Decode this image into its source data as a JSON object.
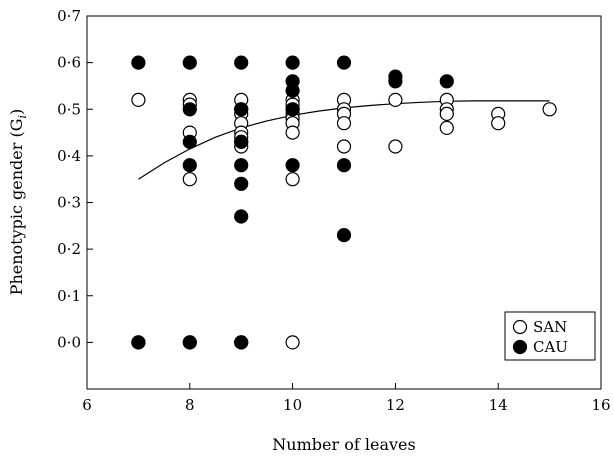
{
  "chart_data": {
    "type": "scatter",
    "title": "",
    "xlabel": "Number of leaves",
    "ylabel_main": "Phenotypic gender (G",
    "ylabel_sub": "i",
    "ylabel_end": ")",
    "xlim": [
      6,
      16
    ],
    "ylim": [
      -0.1,
      0.7
    ],
    "x_ticks": [
      6,
      8,
      10,
      12,
      14,
      16
    ],
    "x_tick_labels": [
      "6",
      "8",
      "10",
      "12",
      "14",
      "16"
    ],
    "y_ticks": [
      0.0,
      0.1,
      0.2,
      0.3,
      0.4,
      0.5,
      0.6,
      0.7
    ],
    "y_tick_labels": [
      "0·0",
      "0·1",
      "0·2",
      "0·3",
      "0·4",
      "0·5",
      "0·6",
      "0·7"
    ],
    "grid": false,
    "legend_position": "bottom-right",
    "series": [
      {
        "name": "SAN",
        "marker": "open-circle",
        "color": "#000000",
        "points": [
          [
            7,
            0.52
          ],
          [
            7,
            0.0
          ],
          [
            8,
            0.52
          ],
          [
            8,
            0.51
          ],
          [
            8,
            0.45
          ],
          [
            8,
            0.35
          ],
          [
            8,
            0.0
          ],
          [
            9,
            0.52
          ],
          [
            9,
            0.5
          ],
          [
            9,
            0.49
          ],
          [
            9,
            0.47
          ],
          [
            9,
            0.45
          ],
          [
            9,
            0.44
          ],
          [
            9,
            0.43
          ],
          [
            9,
            0.42
          ],
          [
            9,
            0.0
          ],
          [
            10,
            0.52
          ],
          [
            10,
            0.51
          ],
          [
            10,
            0.5
          ],
          [
            10,
            0.49
          ],
          [
            10,
            0.48
          ],
          [
            10,
            0.47
          ],
          [
            10,
            0.45
          ],
          [
            10,
            0.35
          ],
          [
            10,
            0.0
          ],
          [
            11,
            0.52
          ],
          [
            11,
            0.5
          ],
          [
            11,
            0.49
          ],
          [
            11,
            0.47
          ],
          [
            11,
            0.42
          ],
          [
            12,
            0.52
          ],
          [
            12,
            0.42
          ],
          [
            13,
            0.52
          ],
          [
            13,
            0.5
          ],
          [
            13,
            0.49
          ],
          [
            13,
            0.46
          ],
          [
            14,
            0.49
          ],
          [
            14,
            0.47
          ],
          [
            15,
            0.5
          ]
        ]
      },
      {
        "name": "CAU",
        "marker": "filled-circle",
        "color": "#000000",
        "points": [
          [
            7,
            0.6
          ],
          [
            7,
            0.0
          ],
          [
            8,
            0.6
          ],
          [
            8,
            0.5
          ],
          [
            8,
            0.43
          ],
          [
            8,
            0.38
          ],
          [
            8,
            0.0
          ],
          [
            9,
            0.6
          ],
          [
            9,
            0.5
          ],
          [
            9,
            0.43
          ],
          [
            9,
            0.38
          ],
          [
            9,
            0.34
          ],
          [
            9,
            0.27
          ],
          [
            9,
            0.0
          ],
          [
            10,
            0.6
          ],
          [
            10,
            0.56
          ],
          [
            10,
            0.54
          ],
          [
            10,
            0.5
          ],
          [
            10,
            0.38
          ],
          [
            11,
            0.6
          ],
          [
            11,
            0.38
          ],
          [
            11,
            0.23
          ],
          [
            12,
            0.57
          ],
          [
            12,
            0.56
          ],
          [
            13,
            0.56
          ]
        ]
      }
    ],
    "fit_line": {
      "type": "curve",
      "points": [
        [
          7,
          0.35
        ],
        [
          7.5,
          0.385
        ],
        [
          8,
          0.415
        ],
        [
          8.5,
          0.44
        ],
        [
          9,
          0.46
        ],
        [
          9.5,
          0.475
        ],
        [
          10,
          0.487
        ],
        [
          10.5,
          0.496
        ],
        [
          11,
          0.503
        ],
        [
          11.5,
          0.508
        ],
        [
          12,
          0.512
        ],
        [
          12.5,
          0.515
        ],
        [
          13,
          0.517
        ],
        [
          13.5,
          0.518
        ],
        [
          14,
          0.518
        ],
        [
          14.5,
          0.518
        ],
        [
          15,
          0.518
        ]
      ]
    }
  }
}
